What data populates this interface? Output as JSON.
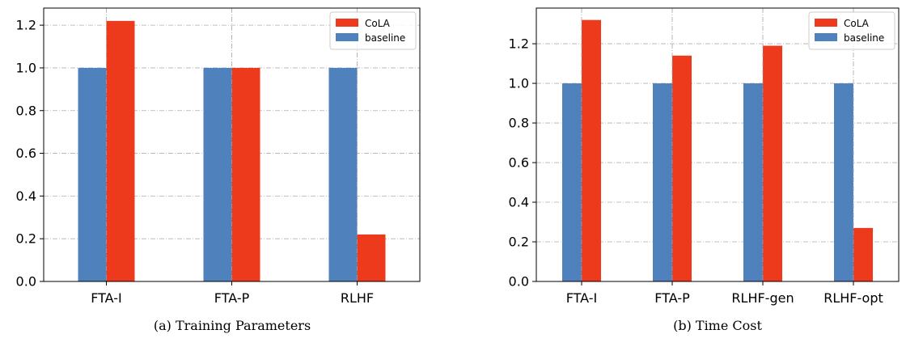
{
  "colors": {
    "cola": "#ee3a1c",
    "baseline": "#4f81bd",
    "grid": "#b0b0b0"
  },
  "chart_data": [
    {
      "type": "bar",
      "caption": "(a)  Training Parameters",
      "categories": [
        "FTA-I",
        "FTA-P",
        "RLHF"
      ],
      "series": [
        {
          "name": "baseline",
          "values": [
            1.0,
            1.0,
            1.0
          ]
        },
        {
          "name": "CoLA",
          "values": [
            1.22,
            1.0,
            0.22
          ]
        }
      ],
      "ylim": [
        0,
        1.28
      ],
      "yticks": [
        "0.0",
        "0.2",
        "0.4",
        "0.6",
        "0.8",
        "1.0",
        "1.2"
      ],
      "grid": true,
      "legend": "top-right",
      "legend_entries": [
        "CoLA",
        "baseline"
      ]
    },
    {
      "type": "bar",
      "caption": "(b)  Time Cost",
      "categories": [
        "FTA-I",
        "FTA-P",
        "RLHF-gen",
        "RLHF-opt"
      ],
      "series": [
        {
          "name": "baseline",
          "values": [
            1.0,
            1.0,
            1.0,
            1.0
          ]
        },
        {
          "name": "CoLA",
          "values": [
            1.32,
            1.14,
            1.19,
            0.27
          ]
        }
      ],
      "ylim": [
        0,
        1.38
      ],
      "yticks": [
        "0.0",
        "0.2",
        "0.4",
        "0.6",
        "0.8",
        "1.0",
        "1.2"
      ],
      "grid": true,
      "legend": "top-right",
      "legend_entries": [
        "CoLA",
        "baseline"
      ]
    }
  ]
}
